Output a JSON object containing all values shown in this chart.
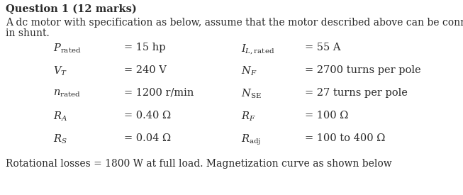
{
  "title": "Question 1 (12 marks)",
  "intro_line1": "A dc motor with specification as below, assume that the motor described above can be connected",
  "intro_line2": "in shunt.",
  "left_col": [
    [
      "$P_{\\mathrm{rated}}$",
      "= 15 hp"
    ],
    [
      "$V_{T}$",
      "= 240 V"
    ],
    [
      "$n_{\\mathrm{rated}}$",
      "= 1200 r/min"
    ],
    [
      "$R_{A}$",
      "= 0.40 Ω"
    ],
    [
      "$R_{S}$",
      "= 0.04 Ω"
    ]
  ],
  "right_col": [
    [
      "$I_{L,\\mathrm{rated}}$",
      "= 55 A"
    ],
    [
      "$N_{F}$",
      "= 2700 turns per pole"
    ],
    [
      "$N_{\\mathrm{SE}}$",
      "= 27 turns per pole"
    ],
    [
      "$R_{F}$",
      "= 100 Ω"
    ],
    [
      "$R_{\\mathrm{adj}}$",
      "= 100 to 400 Ω"
    ]
  ],
  "footer": "Rotational losses = 1800 W at full load. Magnetization curve as shown below",
  "bg_color": "#ffffff",
  "text_color": "#2a2a2a",
  "title_fontsize": 10.5,
  "body_fontsize": 10.0,
  "eq_fontsize": 10.5
}
